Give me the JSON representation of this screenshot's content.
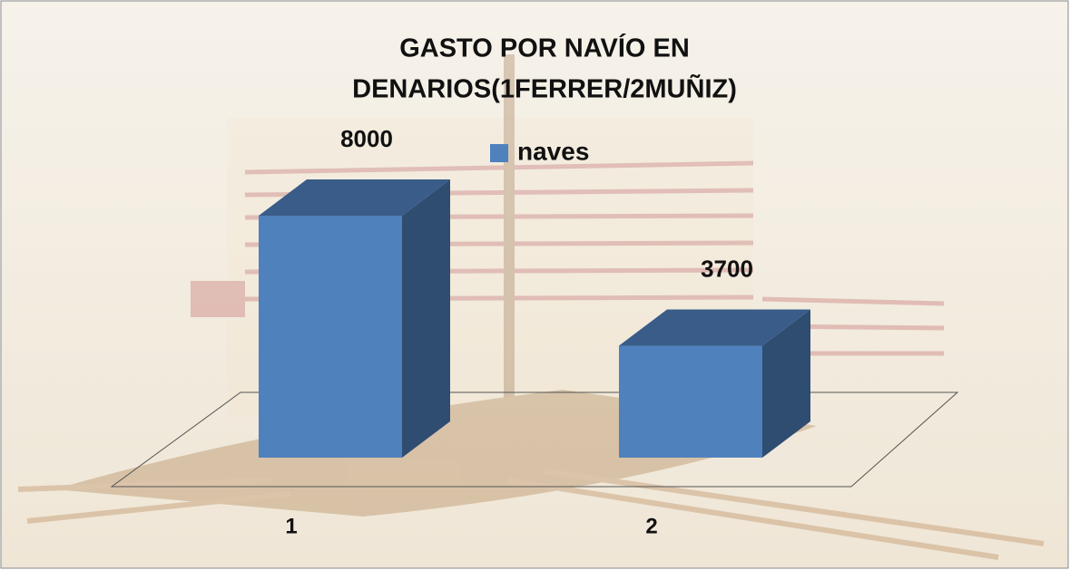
{
  "chart_data": {
    "type": "bar3d",
    "title": [
      "GASTO POR NAVÍO EN",
      "DENARIOS(1FERRER/2MUÑIZ)"
    ],
    "categories": [
      "1",
      "2"
    ],
    "series": [
      {
        "name": "naves",
        "color": "#4f81bd",
        "values": [
          8000,
          3700
        ]
      }
    ]
  }
}
